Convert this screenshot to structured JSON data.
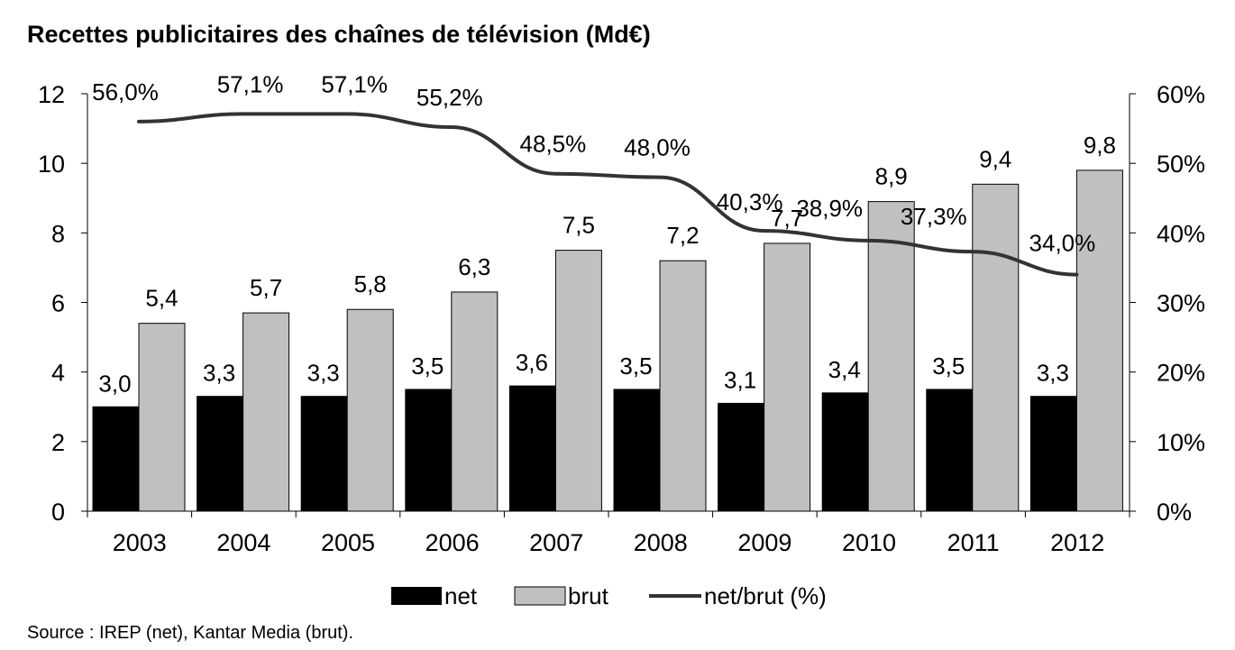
{
  "chart_data": {
    "type": "bar",
    "title": "Recettes publicitaires des chaînes de télévision (Md€)",
    "categories": [
      "2003",
      "2004",
      "2005",
      "2006",
      "2007",
      "2008",
      "2009",
      "2010",
      "2011",
      "2012"
    ],
    "series": [
      {
        "name": "net",
        "type": "bar",
        "axis": "left",
        "color": "#000000",
        "values": [
          3.0,
          3.3,
          3.3,
          3.5,
          3.6,
          3.5,
          3.1,
          3.4,
          3.5,
          3.3
        ],
        "labels": [
          "3,0",
          "3,3",
          "3,3",
          "3,5",
          "3,6",
          "3,5",
          "3,1",
          "3,4",
          "3,5",
          "3,3"
        ]
      },
      {
        "name": "brut",
        "type": "bar",
        "axis": "left",
        "color": "#c0c0c0",
        "values": [
          5.4,
          5.7,
          5.8,
          6.3,
          7.5,
          7.2,
          7.7,
          8.9,
          9.4,
          9.8
        ],
        "labels": [
          "5,4",
          "5,7",
          "5,8",
          "6,3",
          "7,5",
          "7,2",
          "7,7",
          "8,9",
          "9,4",
          "9,8"
        ]
      },
      {
        "name": "net/brut (%)",
        "type": "line",
        "axis": "right",
        "color": "#333333",
        "values": [
          56.0,
          57.1,
          57.1,
          55.2,
          48.5,
          48.0,
          40.3,
          38.9,
          37.3,
          34.0
        ],
        "labels": [
          "56,0%",
          "57,1%",
          "57,1%",
          "55,2%",
          "48,5%",
          "48,0%",
          "40,3%",
          "38,9%",
          "37,3%",
          "34,0%"
        ]
      }
    ],
    "y_left": {
      "ylim": [
        0,
        12
      ],
      "ticks": [
        "0",
        "2",
        "4",
        "6",
        "8",
        "10",
        "12"
      ]
    },
    "y_right": {
      "ylim": [
        0,
        60
      ],
      "ticks": [
        "0%",
        "10%",
        "20%",
        "30%",
        "40%",
        "50%",
        "60%"
      ]
    },
    "legend": {
      "position": "bottom",
      "items": [
        {
          "label": "net",
          "kind": "bar",
          "color": "#000000"
        },
        {
          "label": "brut",
          "kind": "bar",
          "color": "#c0c0c0"
        },
        {
          "label": "net/brut (%)",
          "kind": "line",
          "color": "#333333"
        }
      ]
    },
    "grid": false
  },
  "source": "Source : IREP (net), Kantar Media (brut)."
}
